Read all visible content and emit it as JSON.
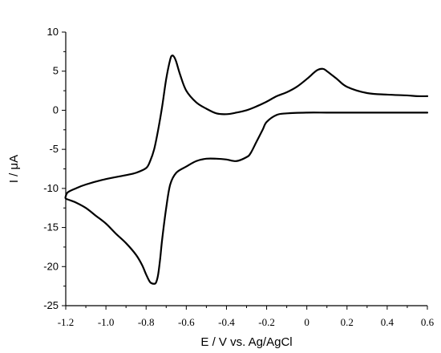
{
  "chart_data": {
    "type": "line",
    "xlabel": "E / V vs. Ag/AgCl",
    "ylabel": "I / μA",
    "xlim": [
      -1.2,
      0.6
    ],
    "ylim": [
      -25,
      10
    ],
    "x_ticks": [
      -1.2,
      -1.0,
      -0.8,
      -0.6,
      -0.4,
      -0.2,
      0,
      0.2,
      0.4,
      0.6
    ],
    "x_tick_labels": [
      "-1.2",
      "-1.0",
      "-0.8",
      "-0.6",
      "-0.4",
      "-0.2",
      "0",
      "0.2",
      "0.4",
      "0.6"
    ],
    "y_ticks": [
      10,
      5,
      0,
      -5,
      -10,
      -15,
      -20,
      -25
    ],
    "y_tick_labels": [
      "10",
      "5",
      "0",
      "-5",
      "-10",
      "-15",
      "-20",
      "-25"
    ],
    "grid": false,
    "series": [
      {
        "color": "#000000",
        "x": [
          0.6,
          0.55,
          0.5,
          0.4,
          0.3,
          0.2,
          0.15,
          0.1,
          0.08,
          0.05,
          0.0,
          -0.05,
          -0.1,
          -0.15,
          -0.2,
          -0.25,
          -0.3,
          -0.35,
          -0.4,
          -0.45,
          -0.5,
          -0.55,
          -0.6,
          -0.63,
          -0.65,
          -0.66,
          -0.67,
          -0.68,
          -0.7,
          -0.72,
          -0.74,
          -0.76,
          -0.78,
          -0.8,
          -0.85,
          -0.9,
          -1.0,
          -1.1,
          -1.15,
          -1.19,
          -1.2,
          -1.2,
          -1.18,
          -1.15,
          -1.1,
          -1.05,
          -1.0,
          -0.95,
          -0.9,
          -0.85,
          -0.82,
          -0.8,
          -0.78,
          -0.76,
          -0.75,
          -0.74,
          -0.73,
          -0.72,
          -0.7,
          -0.68,
          -0.65,
          -0.6,
          -0.55,
          -0.5,
          -0.45,
          -0.4,
          -0.35,
          -0.3,
          -0.28,
          -0.25,
          -0.22,
          -0.2,
          -0.15,
          -0.1,
          0.0,
          0.1,
          0.2,
          0.3,
          0.4,
          0.5,
          0.6
        ],
        "y": [
          1.8,
          1.8,
          1.9,
          2.0,
          2.2,
          3.0,
          4.0,
          5.0,
          5.3,
          5.1,
          4.0,
          3.0,
          2.3,
          1.8,
          1.1,
          0.5,
          0.0,
          -0.3,
          -0.5,
          -0.4,
          0.2,
          1.0,
          2.5,
          4.5,
          6.2,
          6.8,
          7.0,
          6.5,
          4.0,
          0.5,
          -2.5,
          -5.0,
          -6.5,
          -7.4,
          -8.0,
          -8.3,
          -8.8,
          -9.5,
          -10.0,
          -10.5,
          -11.0,
          -11.3,
          -11.5,
          -11.8,
          -12.5,
          -13.5,
          -14.5,
          -15.8,
          -17.0,
          -18.5,
          -19.8,
          -21.0,
          -22.0,
          -22.2,
          -22.0,
          -21.0,
          -19.0,
          -16.5,
          -12.5,
          -9.5,
          -8.0,
          -7.2,
          -6.5,
          -6.2,
          -6.2,
          -6.3,
          -6.5,
          -6.0,
          -5.5,
          -4.0,
          -2.5,
          -1.5,
          -0.6,
          -0.4,
          -0.3,
          -0.3,
          -0.3,
          -0.3,
          -0.3,
          -0.3,
          -0.3
        ]
      }
    ]
  }
}
